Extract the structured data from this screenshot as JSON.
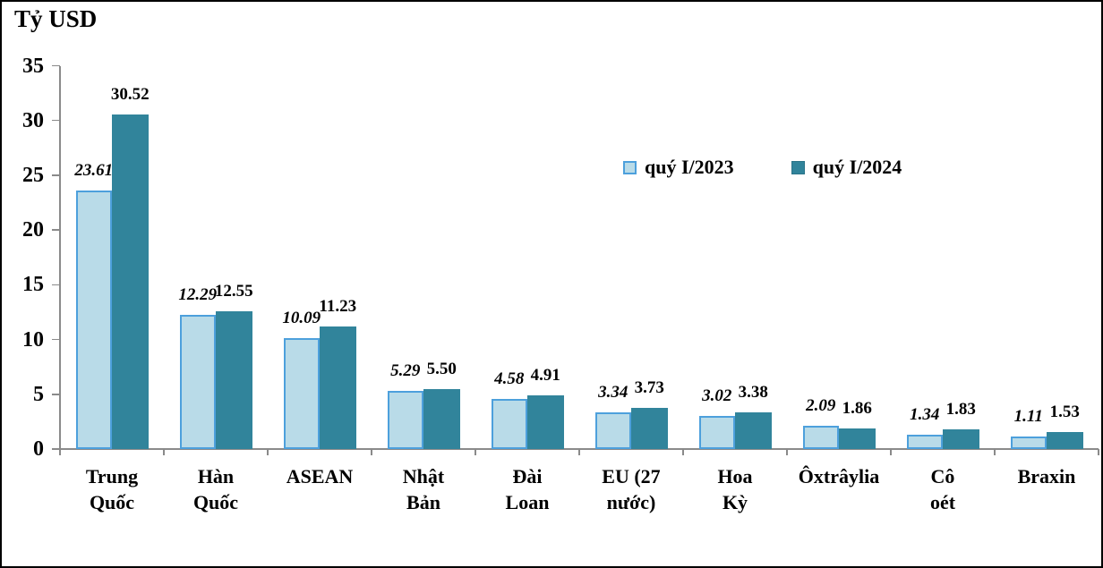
{
  "chart_data": {
    "type": "bar",
    "title": "Tỷ USD",
    "categories": [
      "Trung\nQuốc",
      "Hàn\nQuốc",
      "ASEAN",
      "Nhật\nBản",
      "Đài\nLoan",
      "EU (27\nnước)",
      "Hoa\nKỳ",
      "Ôxtrâylia",
      "Cô\noét",
      "Braxin"
    ],
    "series": [
      {
        "name": "quý I/2023",
        "values": [
          23.61,
          12.29,
          10.09,
          5.29,
          4.58,
          3.34,
          3.02,
          2.09,
          1.34,
          1.11
        ],
        "fill": "#B9DBE8",
        "border": "#4DA0DC",
        "label_style": "bold-italic"
      },
      {
        "name": "quý I/2024",
        "values": [
          30.52,
          12.55,
          11.23,
          5.5,
          4.91,
          3.73,
          3.38,
          1.86,
          1.83,
          1.53
        ],
        "fill": "#31849B",
        "border": "#31849B",
        "label_style": "bold"
      }
    ],
    "y_axis": {
      "min": 0,
      "max": 35,
      "step": 5,
      "ticks": [
        0,
        5,
        10,
        15,
        20,
        25,
        30,
        35
      ]
    },
    "value_label_decimals": 2,
    "grid": false,
    "legend_position": "inside-top-right",
    "value_labels": "outside-end",
    "colors": {
      "axis": "#8A8A8A",
      "text": "#000000",
      "background": "#FFFFFF",
      "series_2023_fill": "#B9DBE8",
      "series_2023_border": "#4DA0DC",
      "series_2024_fill": "#31849B"
    }
  }
}
